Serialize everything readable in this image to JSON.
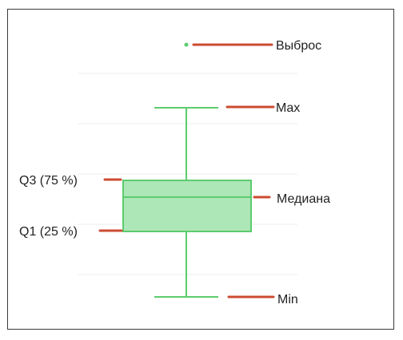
{
  "colors": {
    "box_fill": "#ade6b7",
    "box_stroke": "#5ccc6e",
    "whisker": "#5ccc6e",
    "pointer": "#cc4b32",
    "grid": "#ececec",
    "text": "#222222",
    "border": "#3a3a3a"
  },
  "labels": {
    "outlier": "Выброс",
    "max": "Max",
    "q3": "Q3 (75 %)",
    "median": "Медиана",
    "q1": "Q1 (25 %)",
    "min": "Min"
  }
}
